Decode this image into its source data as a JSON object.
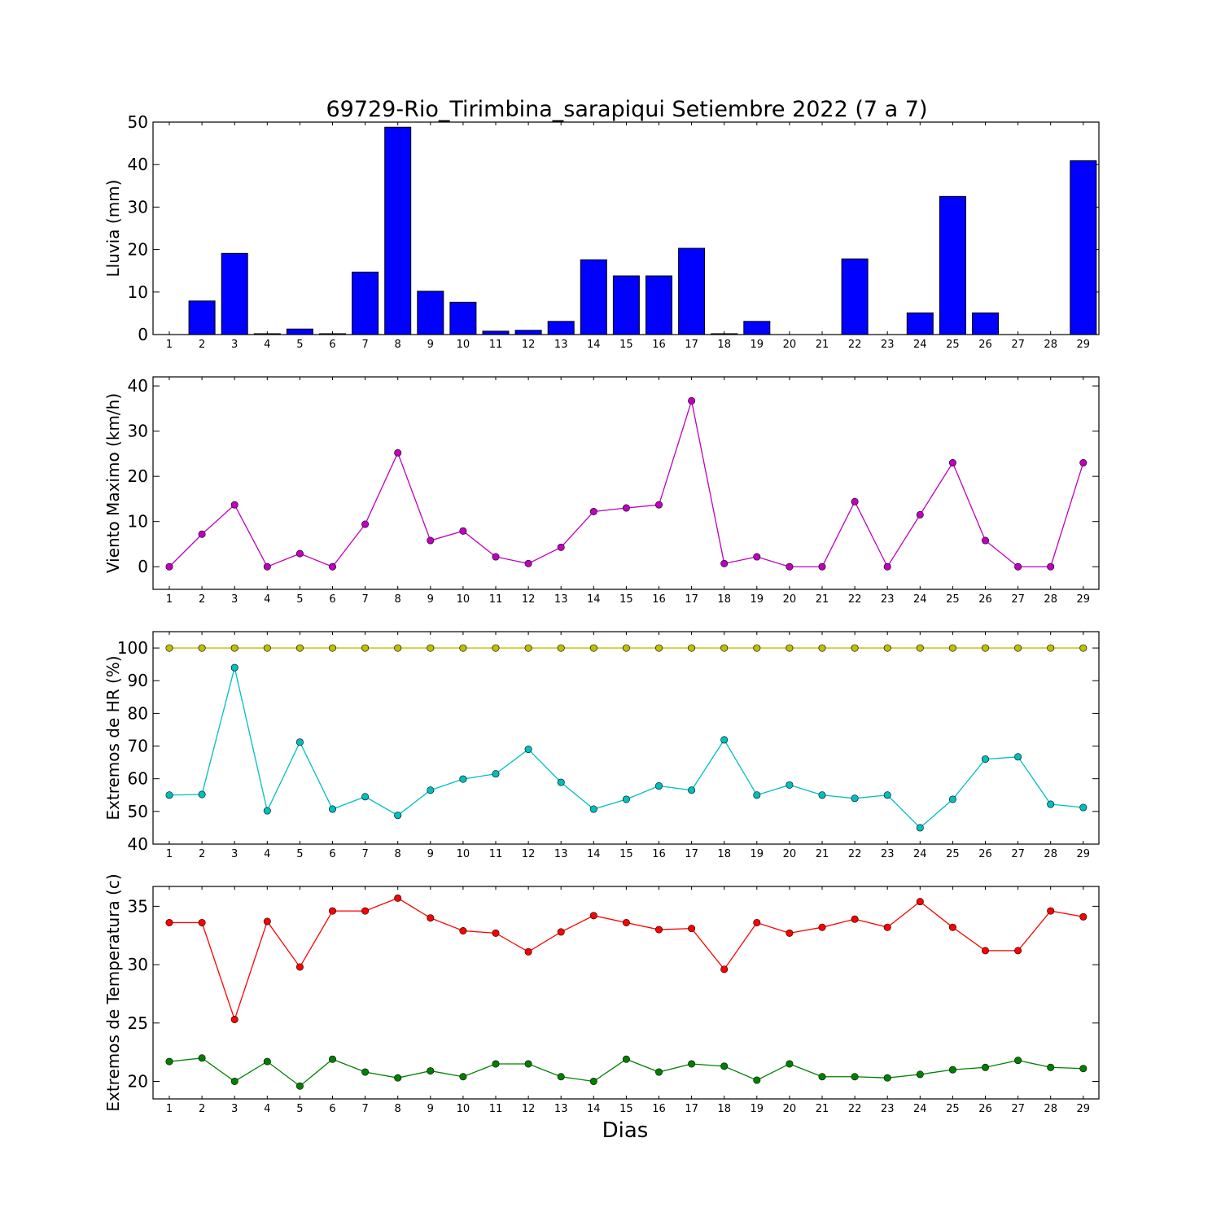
{
  "figure": {
    "title": "69729-Rio_Tirimbina_sarapiqui Setiembre 2022  (7 a 7)",
    "xlabel": "Dias"
  },
  "chart_data": [
    {
      "type": "bar",
      "ylabel": "Lluvia (mm)",
      "ylim": [
        0,
        50
      ],
      "yticks": [
        0,
        10,
        20,
        30,
        40,
        50
      ],
      "categories": [
        "1",
        "2",
        "3",
        "4",
        "5",
        "6",
        "7",
        "8",
        "9",
        "10",
        "11",
        "12",
        "13",
        "14",
        "15",
        "16",
        "17",
        "18",
        "19",
        "20",
        "21",
        "22",
        "23",
        "24",
        "25",
        "26",
        "27",
        "28",
        "29"
      ],
      "series": [
        {
          "color": "#0000ff",
          "values": [
            0,
            7.9,
            19.1,
            0.2,
            1.3,
            0.2,
            14.7,
            48.8,
            10.2,
            7.6,
            0.8,
            1.0,
            3.1,
            17.6,
            13.8,
            13.8,
            20.3,
            0.2,
            3.1,
            0,
            0,
            17.8,
            0,
            5.1,
            32.5,
            5.1,
            0,
            0,
            40.9
          ]
        }
      ]
    },
    {
      "type": "line",
      "ylabel": "Viento Maximo (km/h)",
      "ylim": [
        -5,
        42
      ],
      "yticks": [
        0,
        10,
        20,
        30,
        40
      ],
      "categories": [
        "1",
        "2",
        "3",
        "4",
        "5",
        "6",
        "7",
        "8",
        "9",
        "10",
        "11",
        "12",
        "13",
        "14",
        "15",
        "16",
        "17",
        "18",
        "19",
        "20",
        "21",
        "22",
        "23",
        "24",
        "25",
        "26",
        "27",
        "28",
        "29"
      ],
      "series": [
        {
          "color": "#bf00bf",
          "values": [
            0,
            7.2,
            13.7,
            0,
            2.9,
            0,
            9.4,
            25.2,
            5.8,
            7.9,
            2.2,
            0.7,
            4.3,
            12.2,
            13.0,
            13.7,
            36.7,
            0.7,
            2.2,
            0,
            0,
            14.4,
            0,
            11.5,
            23.0,
            5.8,
            0,
            0,
            23.0
          ]
        }
      ]
    },
    {
      "type": "line",
      "ylabel": "Extremos de HR (%)",
      "ylim": [
        40,
        105
      ],
      "yticks": [
        40,
        50,
        60,
        70,
        80,
        90,
        100
      ],
      "categories": [
        "1",
        "2",
        "3",
        "4",
        "5",
        "6",
        "7",
        "8",
        "9",
        "10",
        "11",
        "12",
        "13",
        "14",
        "15",
        "16",
        "17",
        "18",
        "19",
        "20",
        "21",
        "22",
        "23",
        "24",
        "25",
        "26",
        "27",
        "28",
        "29"
      ],
      "series": [
        {
          "color": "#bfbf00",
          "values": [
            100,
            100,
            100,
            100,
            100,
            100,
            100,
            100,
            100,
            100,
            100,
            100,
            100,
            100,
            100,
            100,
            100,
            100,
            100,
            100,
            100,
            100,
            100,
            100,
            100,
            100,
            100,
            100,
            100
          ]
        },
        {
          "color": "#00bfbf",
          "values": [
            55,
            55.2,
            94,
            50.2,
            71.2,
            50.7,
            54.5,
            48.8,
            56.5,
            59.9,
            61.5,
            69.0,
            58.9,
            50.7,
            53.7,
            57.8,
            56.5,
            71.9,
            55.0,
            58.1,
            55.0,
            54.0,
            55.0,
            45.0,
            53.7,
            66.0,
            66.7,
            52.2,
            51.2
          ]
        }
      ]
    },
    {
      "type": "line",
      "ylabel": "Extremos de Temperatura (c)",
      "ylim": [
        18.5,
        36.7
      ],
      "yticks": [
        20,
        25,
        30,
        35
      ],
      "categories": [
        "1",
        "2",
        "3",
        "4",
        "5",
        "6",
        "7",
        "8",
        "9",
        "10",
        "11",
        "12",
        "13",
        "14",
        "15",
        "16",
        "17",
        "18",
        "19",
        "20",
        "21",
        "22",
        "23",
        "24",
        "25",
        "26",
        "27",
        "28",
        "29"
      ],
      "series": [
        {
          "color": "#ff0000",
          "values": [
            33.6,
            33.6,
            25.3,
            33.7,
            29.8,
            34.6,
            34.6,
            35.7,
            34.0,
            32.9,
            32.7,
            31.1,
            32.8,
            34.2,
            33.6,
            33.0,
            33.1,
            29.6,
            33.6,
            32.7,
            33.2,
            33.9,
            33.2,
            35.4,
            33.2,
            31.2,
            31.2,
            34.6,
            34.1
          ]
        },
        {
          "color": "#008000",
          "values": [
            21.7,
            22.0,
            20.0,
            21.7,
            19.6,
            21.9,
            20.8,
            20.3,
            20.9,
            20.4,
            21.5,
            21.5,
            20.4,
            20.0,
            21.9,
            20.8,
            21.5,
            21.3,
            20.1,
            21.5,
            20.4,
            20.4,
            20.3,
            20.6,
            21.0,
            21.2,
            21.8,
            21.2,
            21.1
          ]
        }
      ]
    }
  ]
}
